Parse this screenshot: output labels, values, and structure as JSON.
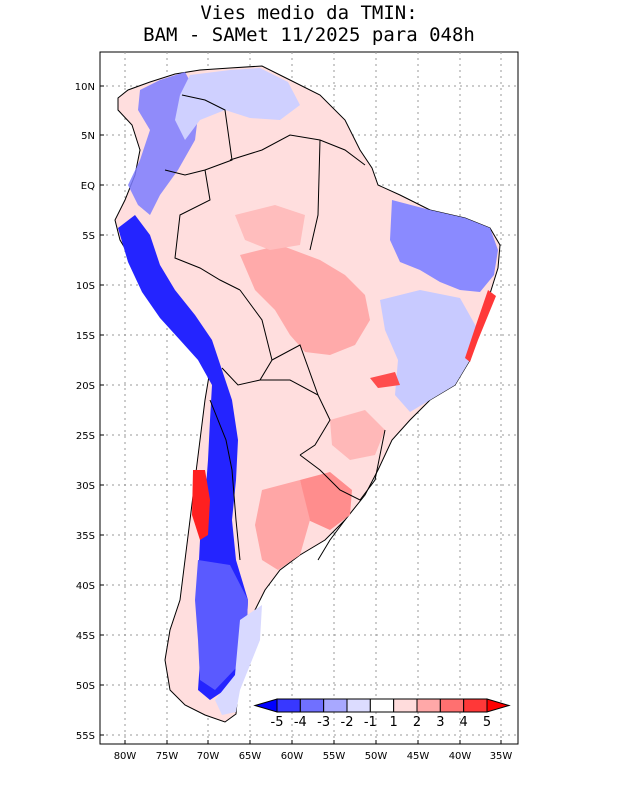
{
  "title": {
    "line1": "Vies medio da TMIN:",
    "line2": "BAM - SAMet 11/2025  para 048h"
  },
  "map": {
    "region": "South America",
    "lat_ticks": [
      "10N",
      "5N",
      "EQ",
      "5S",
      "10S",
      "15S",
      "20S",
      "25S",
      "30S",
      "35S",
      "40S",
      "45S",
      "50S",
      "55S"
    ],
    "lon_ticks": [
      "80W",
      "75W",
      "70W",
      "65W",
      "60W",
      "55W",
      "50W",
      "45W",
      "40W",
      "35W"
    ]
  },
  "colorbar": {
    "labels": [
      "-5",
      "-4",
      "-3",
      "-2",
      "-1",
      "1",
      "2",
      "3",
      "4",
      "5"
    ],
    "colors": [
      "#0000ff",
      "#3838ff",
      "#7070ff",
      "#a8a8ff",
      "#dcdcff",
      "#ffffff",
      "#ffdcdc",
      "#ffa8a8",
      "#ff7070",
      "#ff3838",
      "#ff0000"
    ]
  },
  "colors": {
    "strong_cold": "#1a1aff",
    "cold": "#6f70ff",
    "light_cold": "#c9cbff",
    "light_warm": "#ffd2d2",
    "warm": "#ff9f9f",
    "strong_warm": "#ff3030",
    "border": "#000000",
    "grid": "#9a9a9a"
  }
}
